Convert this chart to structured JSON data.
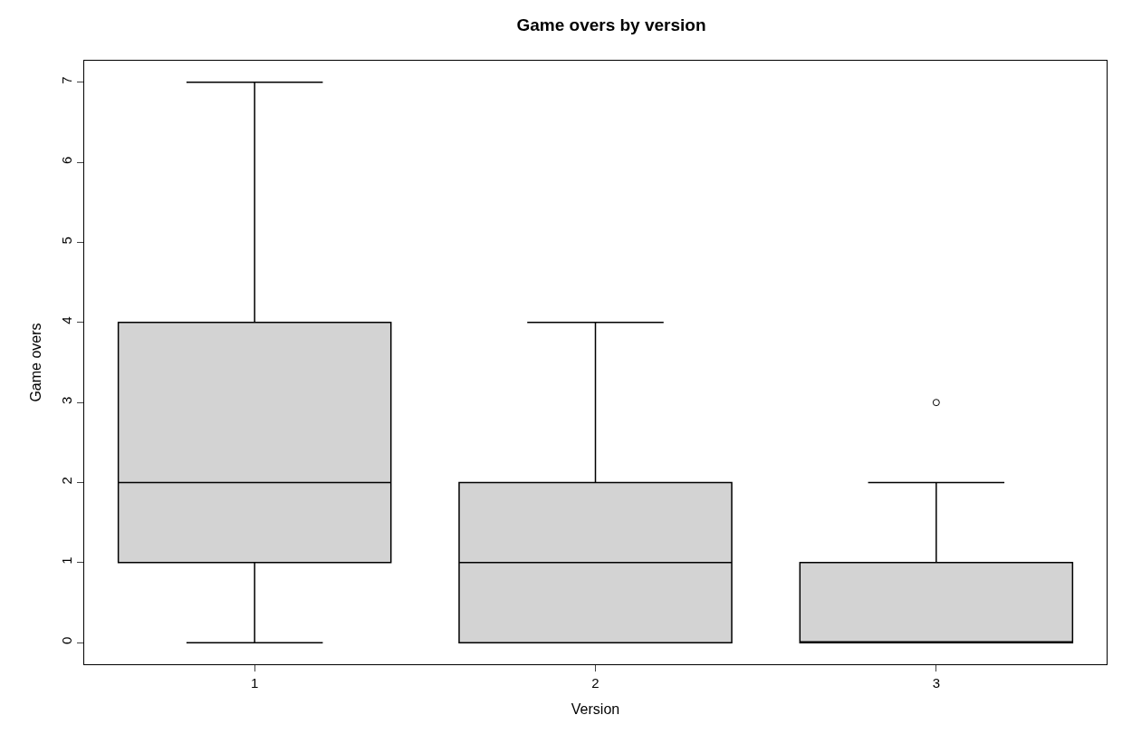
{
  "chart_data": {
    "type": "box",
    "title": "Game overs by version",
    "xlabel": "Version",
    "ylabel": "Game overs",
    "categories": [
      "1",
      "2",
      "3"
    ],
    "boxes": [
      {
        "low": 0,
        "q1": 1,
        "median": 2,
        "q3": 4,
        "high": 7
      },
      {
        "low": 0,
        "q1": 0,
        "median": 1,
        "q3": 2,
        "high": 4
      },
      {
        "low": 0,
        "q1": 0,
        "median": 0,
        "q3": 1,
        "high": 2,
        "outliers": [
          3
        ]
      }
    ],
    "color": "#d3d3d3",
    "ylim": [
      -0.27,
      7.27
    ],
    "yticks": [
      0,
      1,
      2,
      3,
      4,
      5,
      6,
      7
    ]
  }
}
